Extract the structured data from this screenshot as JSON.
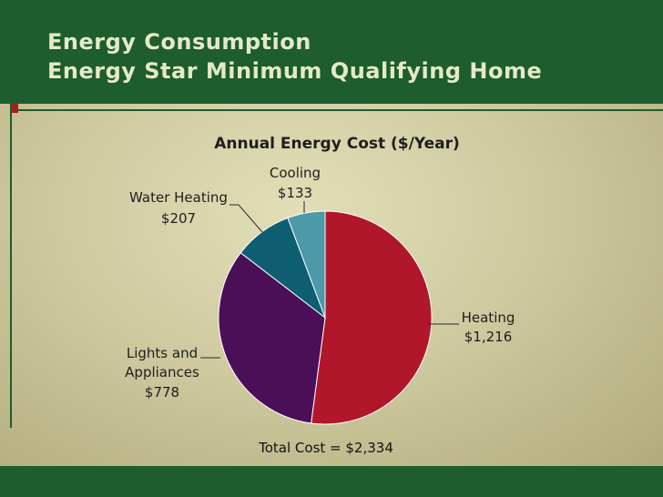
{
  "slide": {
    "title_line1": "Energy Consumption",
    "title_line2": "Energy Star Minimum Qualifying Home"
  },
  "colors": {
    "header": "#1d5d2e",
    "heating": "#b0172a",
    "lights": "#4a0f57",
    "water": "#0d5e70",
    "cooling": "#4c9aa8"
  },
  "chart_data": {
    "type": "pie",
    "title": "Annual Energy Cost ($/Year)",
    "slices": [
      {
        "name": "Heating",
        "value": 1216,
        "label": "$1,216",
        "color": "#b0172a"
      },
      {
        "name": "Lights and Appliances",
        "name_lines": [
          "Lights and",
          "Appliances"
        ],
        "value": 778,
        "label": "$778",
        "color": "#4a0f57"
      },
      {
        "name": "Water Heating",
        "value": 207,
        "label": "$207",
        "color": "#0d5e70"
      },
      {
        "name": "Cooling",
        "value": 133,
        "label": "$133",
        "color": "#4c9aa8"
      }
    ],
    "total_text": "Total Cost = $2,334"
  }
}
